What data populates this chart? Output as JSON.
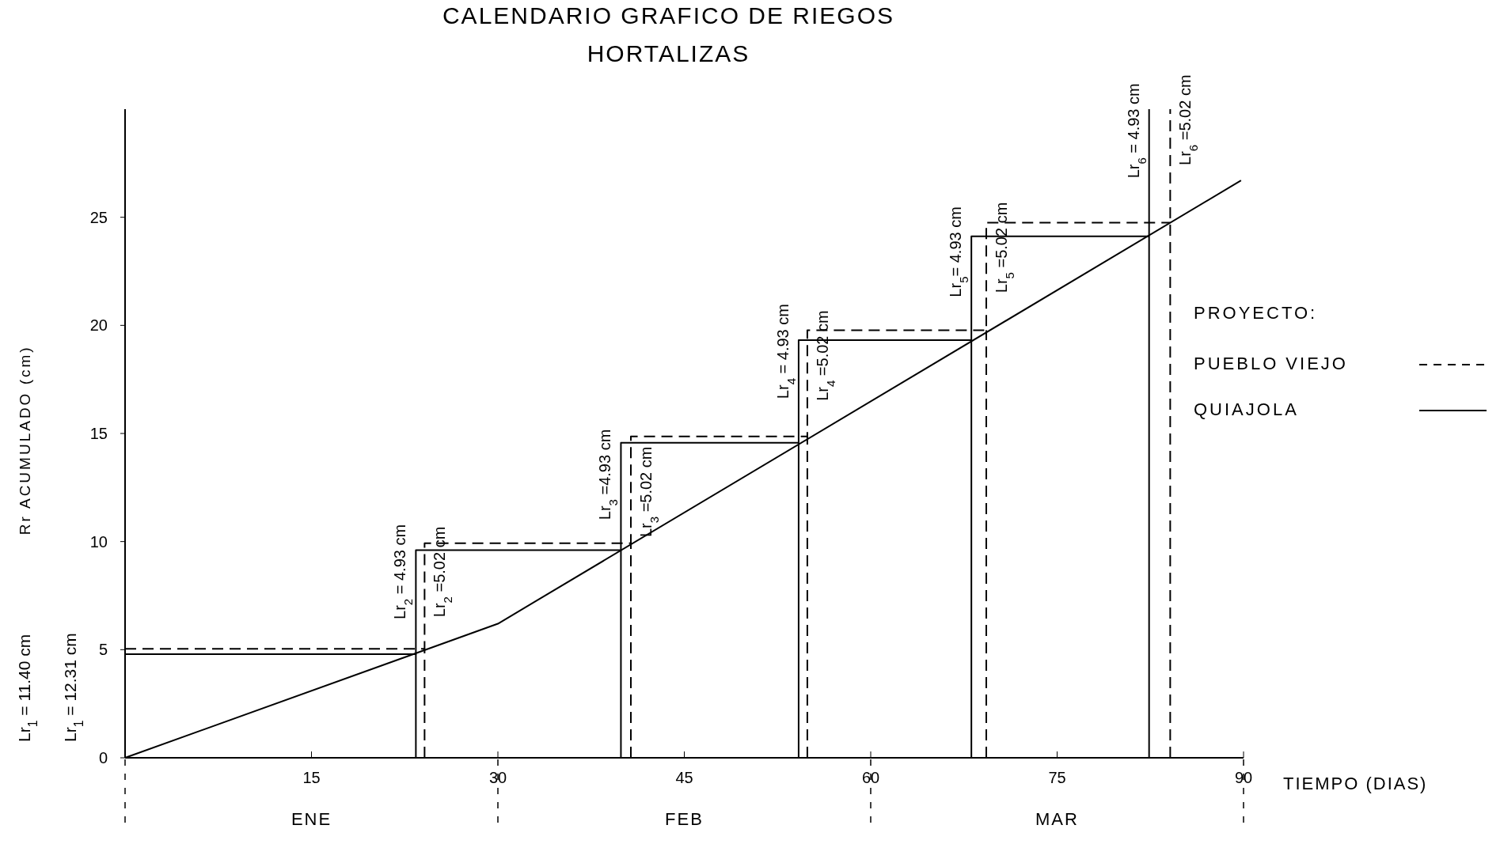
{
  "chart_data": {
    "type": "line",
    "title": "CALENDARIO GRAFICO DE RIEGOS",
    "subtitle": "HORTALIZAS",
    "xlabel": "TIEMPO (DIAS)",
    "ylabel": "Rr ACUMULADO (cm)",
    "legend_title": "PROYECTO:",
    "legend": "right",
    "xlim": [
      0,
      90
    ],
    "xticks": [
      {
        "value": 0,
        "label": null
      },
      15,
      30,
      45,
      60,
      75,
      90
    ],
    "ylim": [
      0,
      30
    ],
    "yticks": [
      0,
      5,
      10,
      15,
      20,
      25
    ],
    "series": [
      {
        "color": "#000000",
        "line_style": "solid",
        "x": [
          0,
          30,
          89.8
        ],
        "values": [
          0,
          6.2,
          26.7
        ]
      },
      {
        "type": "step",
        "name": "PUEBLO VIEJO",
        "color": "#000000",
        "line_style": "dashed",
        "x": [
          0,
          24.1,
          40.7,
          54.9,
          69.3,
          84.1
        ],
        "values": [
          5.04,
          9.92,
          14.86,
          19.77,
          24.75,
          24.75
        ]
      },
      {
        "type": "step",
        "name": "QUIAJOLA",
        "color": "#000000",
        "line_style": "solid",
        "x": [
          0,
          23.4,
          39.9,
          54.2,
          68.1,
          82.4
        ],
        "values": [
          4.79,
          9.6,
          14.57,
          19.32,
          24.12,
          24.12
        ]
      },
      {
        "type": "line",
        "color": "#000000",
        "line_style": "dashed",
        "x": [
          24.1,
          24.1,
          null,
          40.7,
          40.7,
          null,
          54.9,
          54.9,
          null,
          69.3,
          69.3
        ],
        "values": [
          0,
          5.04,
          null,
          0,
          9.92,
          null,
          0,
          14.86,
          null,
          0,
          19.77
        ]
      },
      {
        "type": "line",
        "color": "#000000",
        "line_style": "solid",
        "x": [
          23.4,
          23.4,
          null,
          39.9,
          39.9,
          null,
          54.2,
          54.2,
          null,
          68.1,
          68.1
        ],
        "values": [
          0,
          4.79,
          null,
          0,
          9.6,
          null,
          0,
          14.57,
          null,
          0,
          19.32
        ]
      }
    ],
    "ref_lines": [
      {
        "axis": "x",
        "value": 84.1,
        "color": "#000000",
        "line_style": "dashed"
      },
      {
        "axis": "x",
        "value": 82.4,
        "color": "#000000",
        "line_style": "solid"
      }
    ],
    "annotations": [
      "Lr$_{1}$ = 11.40 cm",
      "Lr$_{1}$ = 12.31 cm",
      "ENE",
      "FEB",
      "MAR",
      {
        "text": "Lr$_{2}$ = 4.93 cm",
        "x": 23.4,
        "y": 8.6
      },
      {
        "text": "Lr$_{2}$ =5.02 cm",
        "x": 24.1,
        "y": 8.6
      },
      {
        "text": "Lr$_{3}$ =4.93 cm",
        "x": 39.9,
        "y": 13.1
      },
      {
        "text": "Lr$_{3}$ =5.02 cm",
        "x": 40.7,
        "y": 12.3
      },
      {
        "text": "Lr$_{4}$ = 4.93 cm",
        "x": 54.2,
        "y": 18.8
      },
      {
        "text": "Lr$_{4}$ =5.02 cm",
        "x": 54.9,
        "y": 18.6
      },
      {
        "text": "Lr$_{5}$= 4.93 cm",
        "x": 68.1,
        "y": 23.4
      },
      {
        "text": "Lr$_{5}$ =5.02 cm",
        "x": 69.3,
        "y": 23.6
      },
      {
        "text": "Lr$_{6}$ = 4.93 cm",
        "x": 82.4,
        "y": 29
      },
      {
        "text": "Lr$_{6}$ =5.02 cm",
        "x": 84.1,
        "y": 29.5
      }
    ]
  }
}
